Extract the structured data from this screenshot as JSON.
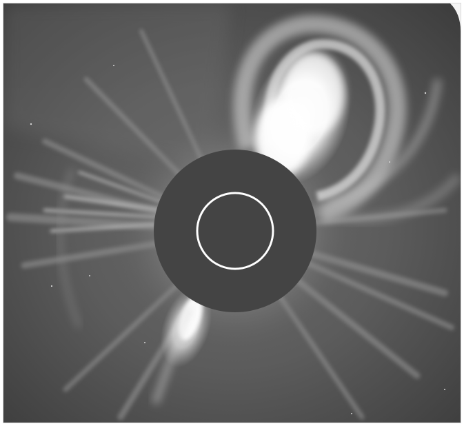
{
  "image": {
    "kind": "coronagraph-image",
    "subject": "coronal-mass-ejection",
    "colors": {
      "background": "#595959",
      "occulting_disk": "#444444",
      "sun_outline": "#ffffff",
      "bright_structure": "#ffffff",
      "frame": "#f5f5f5"
    }
  }
}
